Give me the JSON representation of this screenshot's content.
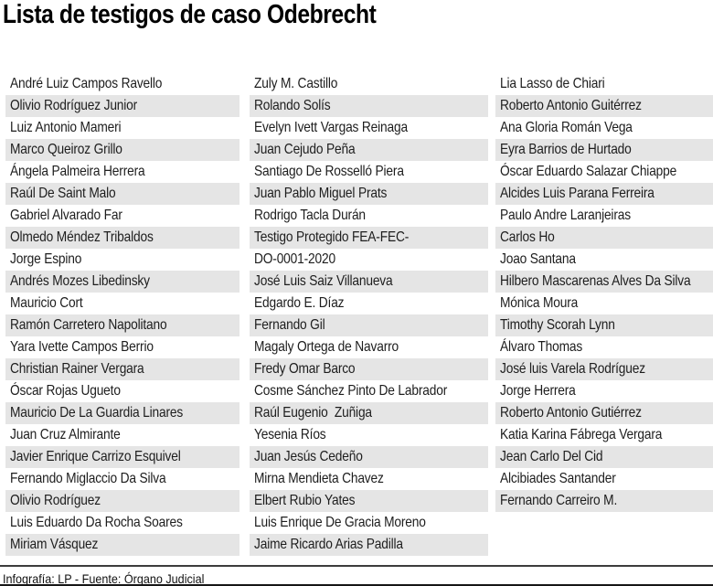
{
  "title": "Lista de testigos de caso Odebrecht",
  "footer": {
    "credit": "Infografía: LP - Fuente: Órgano Judicial"
  },
  "colors": {
    "background": "#ffffff",
    "stripe": "#e5e5e5",
    "text": "#1d1d1d",
    "title_text": "#000000",
    "rule_top": "#3c3c3c",
    "rule_bottom": "#161616"
  },
  "columns": [
    {
      "rows": [
        "André Luiz Campos Ravello",
        "Olivio Rodríguez Junior",
        "Luiz Antonio Mameri",
        "Marco Queiroz Grillo",
        "Ángela Palmeira Herrera",
        "Raúl De Saint Malo",
        "Gabriel Alvarado Far",
        "Olmedo Méndez Tribaldos",
        "Jorge Espino",
        "Andrés Mozes Libedinsky",
        "Mauricio Cort",
        "Ramón Carretero Napolitano",
        "Yara Ivette Campos Berrio",
        "Christian Rainer Vergara",
        "Óscar Rojas Ugueto",
        "Mauricio De La Guardia Linares",
        "Juan Cruz Almirante",
        "Javier Enrique Carrizo Esquivel",
        "Fernando Miglaccio Da Silva",
        "Olivio Rodríguez",
        "Luis Eduardo Da Rocha Soares",
        "Miriam Vásquez"
      ]
    },
    {
      "rows": [
        "Zuly M. Castillo",
        "Rolando Solís",
        "Evelyn Ivett Vargas Reinaga",
        "Juan Cejudo Peña",
        "Santiago De Rosselló Piera",
        "Juan Pablo Miguel Prats",
        "Rodrigo Tacla Durán",
        "Testigo Protegido FEA-FEC-",
        "DO-0001-2020",
        "José Luis Saiz Villanueva",
        "Edgardo E. Díaz",
        "Fernando Gil",
        "Magaly Ortega de Navarro",
        "Fredy Omar Barco",
        "Cosme Sánchez Pinto De Labrador",
        "Raúl Eugenio  Zuñiga",
        "Yesenia Ríos",
        "Juan Jesús Cedeño",
        "Mirna Mendieta Chavez",
        "Elbert Rubio Yates",
        "Luis Enrique De Gracia Moreno",
        "Jaime Ricardo Arias Padilla"
      ]
    },
    {
      "rows": [
        "Lia Lasso de Chiari",
        "Roberto Antonio Guitérrez",
        "Ana Gloria Román Vega",
        "Eyra Barrios de Hurtado",
        "Óscar Eduardo Salazar Chiappe",
        "Alcides Luis Parana Ferreira",
        "Paulo Andre Laranjeiras",
        "Carlos Ho",
        "Joao Santana",
        "Hilbero Mascarenas Alves Da Silva",
        "Mónica Moura",
        "Timothy Scorah Lynn",
        "Álvaro Thomas",
        "José luis Varela Rodríguez",
        "Jorge Herrera",
        "Roberto Antonio Gutiérrez",
        "Katia Karina Fábrega Vergara",
        "Jean Carlo Del Cid",
        "Alcibiades Santander",
        "Fernando Carreiro M."
      ]
    }
  ]
}
